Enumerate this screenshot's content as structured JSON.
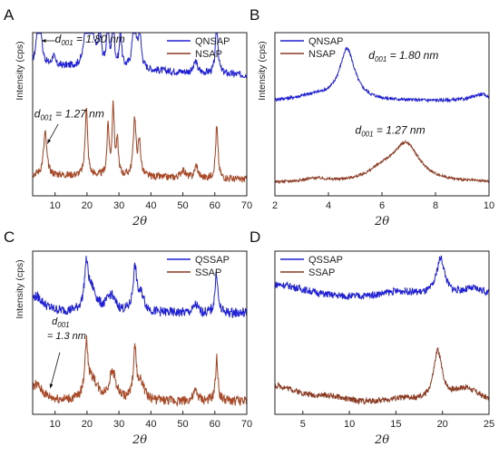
{
  "colors": {
    "top": "#1f1fd6",
    "bottom": "#8b3a22",
    "bottom_hi": "#e0602a",
    "axis": "#222222"
  },
  "chart_data": [
    {
      "panel": "A",
      "type": "line",
      "xlabel": "2θ",
      "ylabel": "Intensity (cps)",
      "xlim": [
        3,
        70
      ],
      "xticks": [
        10,
        20,
        30,
        40,
        50,
        60,
        70
      ],
      "legend": "top-right",
      "series": [
        {
          "name": "QNSAP",
          "color": "top",
          "baseline": 0.74,
          "noise": 0.022,
          "bgslope": 0.06,
          "peaks": [
            [
              5.0,
              0.78,
              0.45
            ],
            [
              9.5,
              0.06,
              0.5
            ],
            [
              19.8,
              0.45,
              0.5
            ],
            [
              21.5,
              0.2,
              1.2
            ],
            [
              24.0,
              0.3,
              0.4
            ],
            [
              26.5,
              0.3,
              0.4
            ],
            [
              28.2,
              0.3,
              0.4
            ],
            [
              30.5,
              0.22,
              0.4
            ],
            [
              34.8,
              0.35,
              0.6
            ],
            [
              36.5,
              0.2,
              0.6
            ],
            [
              54.0,
              0.07,
              0.6
            ],
            [
              60.6,
              0.32,
              0.45
            ]
          ]
        },
        {
          "name": "NSAP",
          "color": "bottom",
          "baseline": 0.1,
          "noise": 0.022,
          "bgslope": 0.03,
          "peaks": [
            [
              6.9,
              0.26,
              0.6
            ],
            [
              19.8,
              0.42,
              0.45
            ],
            [
              26.6,
              0.3,
              0.4
            ],
            [
              28.2,
              0.42,
              0.4
            ],
            [
              29.5,
              0.2,
              0.4
            ],
            [
              34.9,
              0.35,
              0.5
            ],
            [
              36.4,
              0.2,
              0.5
            ],
            [
              50.0,
              0.05,
              0.8
            ],
            [
              54.2,
              0.08,
              0.6
            ],
            [
              60.6,
              0.32,
              0.45
            ]
          ]
        }
      ],
      "annotations": [
        {
          "text": "d",
          "sub": "001",
          "rest": " = 1.80 nm",
          "x": 10,
          "y": 0.94
        },
        {
          "text": "d",
          "sub": "001",
          "rest": " = 1.27 nm",
          "x": 3.5,
          "y": 0.48
        }
      ]
    },
    {
      "panel": "B",
      "type": "line",
      "xlabel": "2θ",
      "ylabel": "Intensity (cps)",
      "xlim": [
        2,
        10
      ],
      "xticks": [
        2,
        4,
        6,
        8,
        10
      ],
      "legend": "top-left",
      "series": [
        {
          "name": "QNSAP",
          "color": "top",
          "baseline": 0.58,
          "noise": 0.01,
          "bgslope": 0,
          "peaks": [
            [
              4.7,
              0.31,
              0.35
            ],
            [
              9.7,
              0.04,
              0.4
            ],
            [
              3.5,
              0.03,
              0.8
            ]
          ]
        },
        {
          "name": "NSAP",
          "color": "bottom",
          "baseline": 0.08,
          "noise": 0.008,
          "bgslope": 0,
          "peaks": [
            [
              6.9,
              0.23,
              0.6
            ],
            [
              6.0,
              0.06,
              0.6
            ],
            [
              3.5,
              0.02,
              0.5
            ]
          ]
        }
      ],
      "annotations": [
        {
          "text": "d",
          "sub": "001",
          "rest": " = 1.80 nm",
          "x": 5.5,
          "y": 0.84
        },
        {
          "text": "d",
          "sub": "001",
          "rest": " = 1.27 nm",
          "x": 5.0,
          "y": 0.38
        }
      ]
    },
    {
      "panel": "C",
      "type": "line",
      "xlabel": "2θ",
      "ylabel": "Intensity (cps)",
      "xlim": [
        3,
        70
      ],
      "xticks": [
        10,
        20,
        30,
        40,
        50,
        60,
        70
      ],
      "legend": "top-right",
      "series": [
        {
          "name": "QSSAP",
          "color": "top",
          "baseline": 0.62,
          "noise": 0.03,
          "bgslope": 0,
          "peaks": [
            [
              4.0,
              0.1,
              3.0
            ],
            [
              19.8,
              0.25,
              0.7
            ],
            [
              21.5,
              0.13,
              1.8
            ],
            [
              27.5,
              0.1,
              1.5
            ],
            [
              35.0,
              0.26,
              0.7
            ],
            [
              37.0,
              0.1,
              1.2
            ],
            [
              54.0,
              0.05,
              0.8
            ],
            [
              60.5,
              0.25,
              0.5
            ]
          ]
        },
        {
          "name": "SSAP",
          "color": "bottom",
          "baseline": 0.08,
          "noise": 0.03,
          "bgslope": 0,
          "peaks": [
            [
              4.0,
              0.1,
              2.5
            ],
            [
              19.8,
              0.32,
              0.6
            ],
            [
              21.8,
              0.12,
              1.8
            ],
            [
              28.0,
              0.17,
              1.3
            ],
            [
              35.0,
              0.3,
              0.6
            ],
            [
              37.0,
              0.1,
              1.2
            ],
            [
              54.0,
              0.06,
              0.8
            ],
            [
              60.6,
              0.26,
              0.45
            ]
          ]
        }
      ],
      "annotations": [
        {
          "text": "d",
          "sub": "001",
          "rest": "",
          "x": 9,
          "y": 0.55
        },
        {
          "text": "= 1.3 nm",
          "sub": "",
          "rest": "",
          "x": 7.5,
          "y": 0.46
        }
      ]
    },
    {
      "panel": "D",
      "type": "line",
      "xlabel": "2θ",
      "ylabel": "",
      "xlim": [
        2,
        25
      ],
      "xticks": [
        5,
        10,
        15,
        20,
        25
      ],
      "legend": "top-left",
      "series": [
        {
          "name": "QSSAP",
          "color": "top",
          "baseline": 0.67,
          "noise": 0.022,
          "bgslope": 0,
          "peaks": [
            [
              2.0,
              0.12,
              5.0
            ],
            [
              19.8,
              0.23,
              0.55
            ],
            [
              23.5,
              0.08,
              2.5
            ],
            [
              15.5,
              0.06,
              3.5
            ]
          ]
        },
        {
          "name": "SSAP",
          "color": "bottom",
          "baseline": 0.05,
          "noise": 0.018,
          "bgslope": 0,
          "peaks": [
            [
              2.0,
              0.12,
              3.5
            ],
            [
              19.5,
              0.3,
              0.55
            ],
            [
              22.5,
              0.1,
              2.0
            ],
            [
              8.0,
              0.03,
              2.0
            ],
            [
              15.5,
              0.03,
              2.0
            ]
          ]
        }
      ],
      "annotations": []
    }
  ]
}
